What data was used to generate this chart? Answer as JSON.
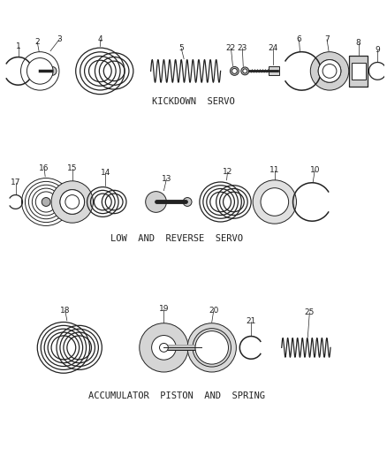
{
  "background_color": "#ffffff",
  "line_color": "#222222",
  "section_labels": {
    "kickdown": "KICKDOWN  SERVO",
    "low_reverse": "LOW  AND  REVERSE  SERVO",
    "accumulator": "ACCUMULATOR  PISTON  AND  SPRING"
  },
  "figsize": [
    4.38,
    5.33
  ],
  "dpi": 100
}
